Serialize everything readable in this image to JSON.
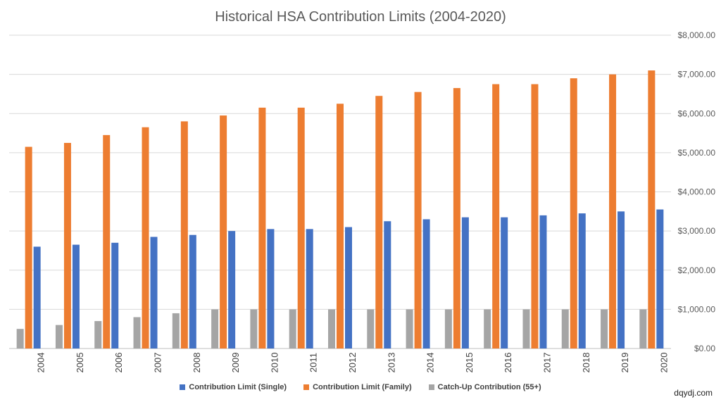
{
  "chart_data": {
    "type": "bar",
    "title": "Historical HSA Contribution Limits (2004-2020)",
    "categories": [
      "2004",
      "2005",
      "2006",
      "2007",
      "2008",
      "2009",
      "2010",
      "2011",
      "2012",
      "2013",
      "2014",
      "2015",
      "2016",
      "2017",
      "2018",
      "2019",
      "2020"
    ],
    "series": [
      {
        "name": "Catch-Up Contribution (55+)",
        "color": "#a5a5a5",
        "values": [
          500,
          600,
          700,
          800,
          900,
          1000,
          1000,
          1000,
          1000,
          1000,
          1000,
          1000,
          1000,
          1000,
          1000,
          1000,
          1000
        ]
      },
      {
        "name": "Contribution Limit (Family)",
        "color": "#ed7d31",
        "values": [
          5150,
          5250,
          5450,
          5650,
          5800,
          5950,
          6150,
          6150,
          6250,
          6450,
          6550,
          6650,
          6750,
          6750,
          6900,
          7000,
          7100
        ]
      },
      {
        "name": "Contribution Limit (Single)",
        "color": "#4472c4",
        "values": [
          2600,
          2650,
          2700,
          2850,
          2900,
          3000,
          3050,
          3050,
          3100,
          3250,
          3300,
          3350,
          3350,
          3400,
          3450,
          3500,
          3550
        ]
      }
    ],
    "legend_order": [
      "Contribution Limit (Single)",
      "Contribution Limit (Family)",
      "Catch-Up Contribution (55+)"
    ],
    "ylim": [
      0,
      8000
    ],
    "y_ticks": [
      0,
      1000,
      2000,
      3000,
      4000,
      5000,
      6000,
      7000,
      8000
    ],
    "y_tick_labels": [
      "$0.00",
      "$1,000.00",
      "$2,000.00",
      "$3,000.00",
      "$4,000.00",
      "$5,000.00",
      "$6,000.00",
      "$7,000.00",
      "$8,000.00"
    ],
    "y_axis_side": "right",
    "grid": true,
    "legend_position": "bottom",
    "xlabel": "",
    "ylabel": ""
  },
  "watermark": "dqydj.com"
}
